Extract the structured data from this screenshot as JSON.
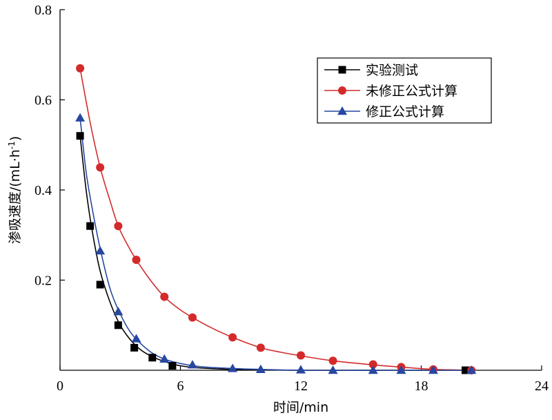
{
  "chart_data": {
    "type": "line",
    "xlabel": "时间/min",
    "ylabel_main": "渗吸速度/(mL·h",
    "ylabel_sup": "-1",
    "ylabel_tail": ")",
    "xlim": [
      0,
      24
    ],
    "ylim": [
      0,
      0.8
    ],
    "x_ticks": [
      0,
      6,
      12,
      18,
      24
    ],
    "x_tick_labels": [
      "0",
      "6",
      "12",
      "18",
      "24"
    ],
    "y_ticks": [
      0.2,
      0.4,
      0.6,
      0.8
    ],
    "y_tick_labels": [
      "0.2",
      "0.4",
      "0.6",
      "0.8"
    ],
    "grid": false,
    "legend_position": "top-right",
    "series": [
      {
        "name": "实验测试",
        "color": "#000000",
        "marker": "square",
        "points": [
          [
            1.0,
            0.52
          ],
          [
            1.5,
            0.32
          ],
          [
            2.0,
            0.19
          ],
          [
            2.9,
            0.1
          ],
          [
            3.7,
            0.05
          ],
          [
            4.6,
            0.028
          ],
          [
            5.6,
            0.01
          ],
          [
            20.2,
            0.0
          ]
        ],
        "curve": [
          [
            1.0,
            0.52
          ],
          [
            1.3,
            0.4
          ],
          [
            1.6,
            0.31
          ],
          [
            2.0,
            0.22
          ],
          [
            2.5,
            0.15
          ],
          [
            3.0,
            0.1
          ],
          [
            3.5,
            0.068
          ],
          [
            4.0,
            0.046
          ],
          [
            4.6,
            0.03
          ],
          [
            5.3,
            0.018
          ],
          [
            6.0,
            0.01
          ],
          [
            7.0,
            0.005
          ],
          [
            8.5,
            0.002
          ],
          [
            10.0,
            0.001
          ],
          [
            12.0,
            0.0
          ],
          [
            16.0,
            0.0
          ],
          [
            20.5,
            0.0
          ]
        ]
      },
      {
        "name": "未修正公式计算",
        "color": "#d42a2a",
        "marker": "circle",
        "points": [
          [
            1.0,
            0.67
          ],
          [
            2.0,
            0.45
          ],
          [
            2.9,
            0.32
          ],
          [
            3.8,
            0.245
          ],
          [
            5.2,
            0.163
          ],
          [
            6.6,
            0.117
          ],
          [
            8.6,
            0.073
          ],
          [
            10.0,
            0.05
          ],
          [
            12.0,
            0.033
          ],
          [
            13.6,
            0.021
          ],
          [
            15.6,
            0.013
          ],
          [
            17.0,
            0.007
          ],
          [
            18.6,
            0.002
          ],
          [
            20.5,
            0.0
          ]
        ],
        "curve": [
          [
            1.0,
            0.67
          ],
          [
            1.5,
            0.55
          ],
          [
            2.0,
            0.45
          ],
          [
            2.5,
            0.375
          ],
          [
            2.9,
            0.32
          ],
          [
            3.4,
            0.275
          ],
          [
            3.8,
            0.245
          ],
          [
            4.5,
            0.2
          ],
          [
            5.2,
            0.163
          ],
          [
            5.9,
            0.137
          ],
          [
            6.6,
            0.117
          ],
          [
            7.6,
            0.093
          ],
          [
            8.6,
            0.073
          ],
          [
            10.0,
            0.05
          ],
          [
            11.0,
            0.04
          ],
          [
            12.0,
            0.032
          ],
          [
            13.6,
            0.021
          ],
          [
            15.6,
            0.012
          ],
          [
            17.0,
            0.007
          ],
          [
            18.6,
            0.002
          ],
          [
            20.5,
            0.0
          ]
        ]
      },
      {
        "name": "修正公式计算",
        "color": "#2747a1",
        "marker": "triangle",
        "points": [
          [
            1.0,
            0.56
          ],
          [
            2.0,
            0.265
          ],
          [
            2.9,
            0.13
          ],
          [
            3.8,
            0.07
          ],
          [
            5.2,
            0.025
          ],
          [
            6.6,
            0.012
          ],
          [
            8.6,
            0.004
          ],
          [
            10.0,
            0.002
          ],
          [
            12.0,
            0.001
          ],
          [
            13.6,
            0.0
          ],
          [
            15.6,
            0.0
          ],
          [
            17.0,
            0.0
          ],
          [
            18.6,
            0.0
          ],
          [
            20.5,
            0.0
          ]
        ],
        "curve": [
          [
            1.0,
            0.56
          ],
          [
            1.3,
            0.44
          ],
          [
            1.6,
            0.36
          ],
          [
            2.0,
            0.27
          ],
          [
            2.5,
            0.18
          ],
          [
            3.0,
            0.125
          ],
          [
            3.5,
            0.085
          ],
          [
            4.0,
            0.06
          ],
          [
            4.6,
            0.038
          ],
          [
            5.2,
            0.025
          ],
          [
            6.0,
            0.015
          ],
          [
            7.0,
            0.008
          ],
          [
            8.6,
            0.004
          ],
          [
            10.0,
            0.002
          ],
          [
            12.0,
            0.0
          ],
          [
            16.0,
            0.0
          ],
          [
            20.5,
            0.0
          ]
        ]
      }
    ]
  }
}
